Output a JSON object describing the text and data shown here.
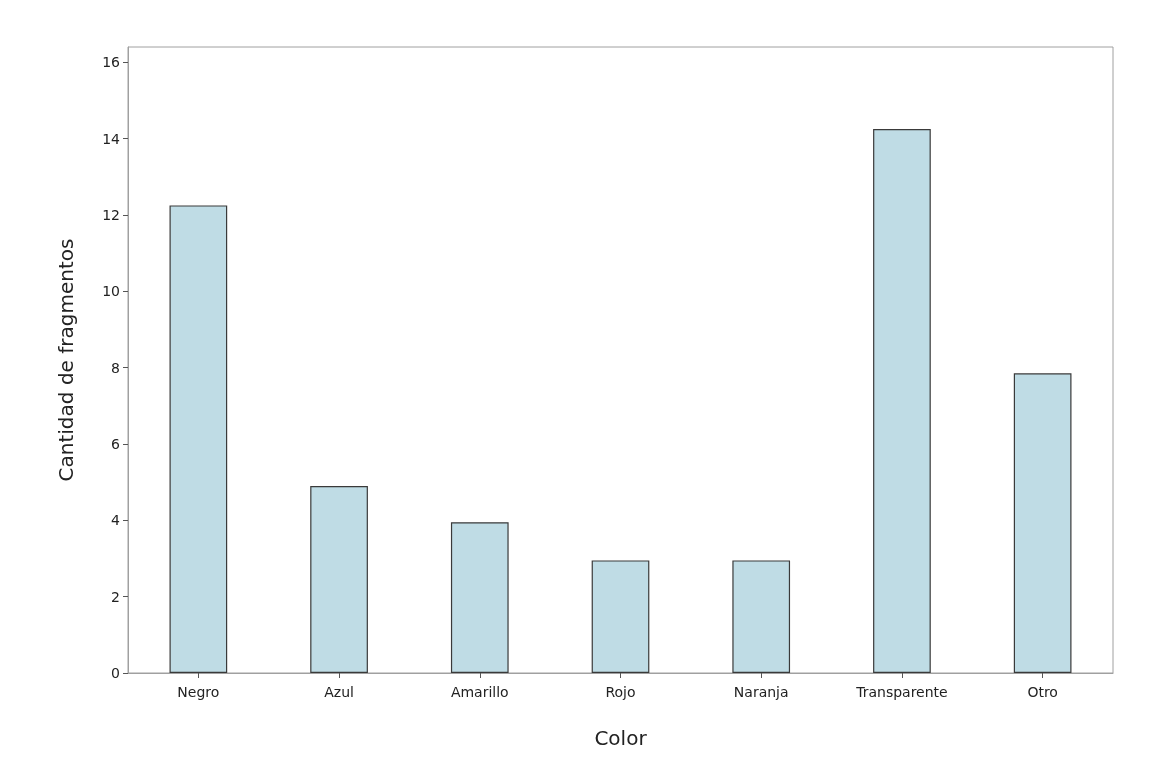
{
  "chart_data": {
    "type": "bar",
    "xlabel": "Color",
    "ylabel": "Cantidad de fragmentos",
    "categories": [
      "Negro",
      "Azul",
      "Amarillo",
      "Rojo",
      "Naranja",
      "Transparente",
      "Otro"
    ],
    "values": [
      12.25,
      4.9,
      3.95,
      2.95,
      2.95,
      14.25,
      7.85
    ],
    "color": "#bfdce5",
    "ylim": [
      0,
      16.4
    ],
    "yticks": [
      0,
      2,
      4,
      6,
      8,
      10,
      12,
      14,
      16
    ],
    "grid": false
  }
}
